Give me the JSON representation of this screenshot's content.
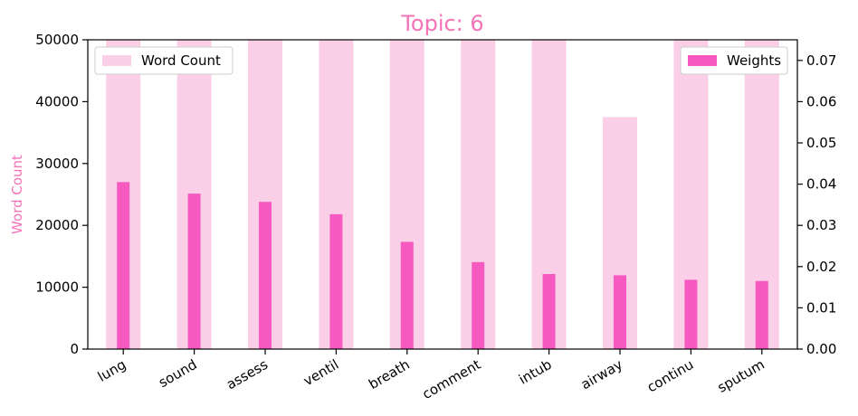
{
  "chart_data": {
    "type": "bar",
    "title": "Topic: 6",
    "categories": [
      "lung",
      "sound",
      "assess",
      "ventil",
      "breath",
      "comment",
      "intub",
      "airway",
      "continu",
      "sputum"
    ],
    "series": [
      {
        "name": "Word Count",
        "axis": "left",
        "color": "#fbcfe8",
        "values": [
          50000,
          50000,
          50000,
          50000,
          50000,
          50000,
          50000,
          37500,
          50000,
          50000
        ]
      },
      {
        "name": "Weights",
        "axis": "right",
        "color": "#f65ac1",
        "values": [
          0.0405,
          0.0377,
          0.0357,
          0.0327,
          0.026,
          0.0211,
          0.0182,
          0.0179,
          0.0168,
          0.0165
        ]
      }
    ],
    "ylabel": "Word Count",
    "ylabel_color": "#f472b6",
    "title_color": "#f472b6",
    "ylim": [
      0,
      50000
    ],
    "yticks": [
      0,
      10000,
      20000,
      30000,
      40000,
      50000
    ],
    "y2lim": [
      0,
      0.075
    ],
    "y2ticks": [
      "0.00",
      "0.01",
      "0.02",
      "0.03",
      "0.04",
      "0.05",
      "0.06",
      "0.07"
    ],
    "legend_left_position": "top-left",
    "legend_right_position": "top-right",
    "grid": false
  }
}
